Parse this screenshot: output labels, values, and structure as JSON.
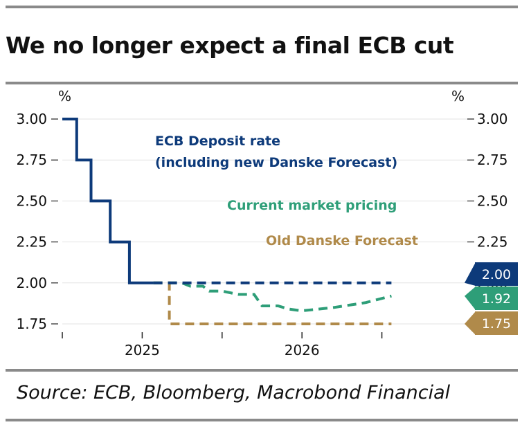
{
  "title": "We no longer expect a final ECB cut",
  "source": "Source: ECB, Bloomberg, Macrobond Financial",
  "chart_data": {
    "type": "line",
    "left_unit": "%",
    "right_unit": "%",
    "ylim": [
      1.7,
      3.05
    ],
    "y_ticks": [
      "3.00",
      "2.75",
      "2.50",
      "2.25",
      "2.00",
      "1.75"
    ],
    "y_tick_values": [
      3.0,
      2.75,
      2.5,
      2.25,
      2.0,
      1.75
    ],
    "xlim": [
      2024.5,
      2027.0
    ],
    "x_ticks": [
      {
        "label": "",
        "at": 2024.5
      },
      {
        "label": "2025",
        "at": 2025.0
      },
      {
        "label": "",
        "at": 2025.5
      },
      {
        "label": "2026",
        "at": 2026.0
      },
      {
        "label": "",
        "at": 2026.5
      }
    ],
    "x_tick_labels": [
      "2025",
      "2026"
    ],
    "x_tick_label_positions": [
      2025.0,
      2026.0
    ],
    "grid": true,
    "series": [
      {
        "name": "ECB Deposit rate (including new Danske Forecast)",
        "color": "#0d3a7a",
        "style": "solid",
        "points": [
          [
            2024.5,
            3.0
          ],
          [
            2024.59,
            3.0
          ],
          [
            2024.59,
            2.75
          ],
          [
            2024.68,
            2.75
          ],
          [
            2024.68,
            2.5
          ],
          [
            2024.8,
            2.5
          ],
          [
            2024.8,
            2.25
          ],
          [
            2024.92,
            2.25
          ],
          [
            2024.92,
            2.0
          ],
          [
            2025.07,
            2.0
          ]
        ]
      },
      {
        "name": "ECB Deposit rate forecast",
        "color": "#0d3a7a",
        "style": "dashed",
        "points": [
          [
            2025.07,
            2.0
          ],
          [
            2026.56,
            2.0
          ]
        ]
      },
      {
        "name": "Current market pricing",
        "color": "#2e9e78",
        "style": "dashed",
        "points": [
          [
            2025.07,
            2.0
          ],
          [
            2025.25,
            2.0
          ],
          [
            2025.3,
            1.98
          ],
          [
            2025.38,
            1.98
          ],
          [
            2025.42,
            1.95
          ],
          [
            2025.5,
            1.95
          ],
          [
            2025.6,
            1.93
          ],
          [
            2025.7,
            1.93
          ],
          [
            2025.75,
            1.86
          ],
          [
            2025.85,
            1.86
          ],
          [
            2025.92,
            1.84
          ],
          [
            2026.0,
            1.83
          ],
          [
            2026.2,
            1.85
          ],
          [
            2026.4,
            1.88
          ],
          [
            2026.56,
            1.92
          ]
        ]
      },
      {
        "name": "Old Danske Forecast",
        "color": "#b08a4a",
        "style": "dashed",
        "points": [
          [
            2025.07,
            2.0
          ],
          [
            2025.17,
            2.0
          ],
          [
            2025.17,
            1.75
          ],
          [
            2026.56,
            1.75
          ]
        ]
      }
    ],
    "annotations": [
      {
        "text": "ECB Deposit rate",
        "color": "#0d3a7a"
      },
      {
        "text": "(including new Danske Forecast)",
        "color": "#0d3a7a"
      },
      {
        "text": "Current market pricing",
        "color": "#2e9e78"
      },
      {
        "text": "Old Danske Forecast",
        "color": "#b08a4a"
      }
    ],
    "end_labels": [
      {
        "text": "2.00",
        "value": 2.0,
        "color": "#0d3a7a"
      },
      {
        "text": "1.92",
        "value": 1.92,
        "color": "#2e9e78"
      },
      {
        "text": "1.75",
        "value": 1.75,
        "color": "#b08a4a"
      }
    ]
  }
}
